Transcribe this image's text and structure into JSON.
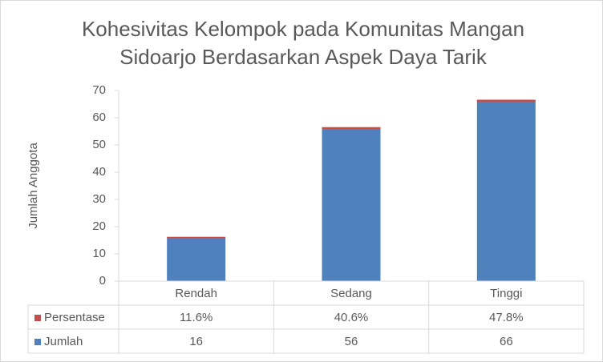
{
  "chart_data": {
    "type": "bar",
    "stacked": true,
    "title": [
      "Kohesivitas Kelompok pada Komunitas Mangan",
      "Sidoarjo Berdasarkan Aspek Daya Tarik"
    ],
    "y_label": "Jumlah Anggota",
    "categories": [
      "Rendah",
      "Sedang",
      "Tinggi"
    ],
    "series": [
      {
        "name": "Jumlah",
        "color": "#4f81bd",
        "values": [
          16,
          56,
          66
        ]
      },
      {
        "name": "Persentase",
        "color": "#c0504d",
        "values": [
          0.116,
          0.406,
          0.478
        ],
        "value_labels": [
          "11.6%",
          "40.6%",
          "47.8%"
        ]
      }
    ],
    "ylim": [
      0,
      70
    ],
    "yticks": [
      0,
      10,
      20,
      30,
      40,
      50,
      60,
      70
    ],
    "grid": false,
    "data_table": true
  }
}
